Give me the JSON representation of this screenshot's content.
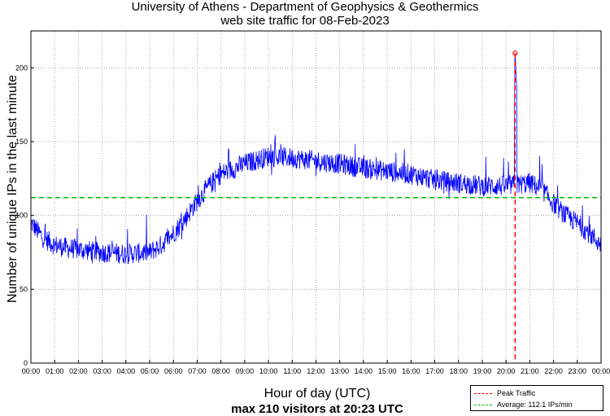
{
  "chart_data": {
    "type": "line",
    "title": "University of Athens - Department of Geophysics & Geothermics",
    "subtitle": "web site traffic for 08-Feb-2023",
    "xlabel": "Hour of day (UTC)",
    "ylabel": "Number of unique IPs in the last minute",
    "summary": "max 210 visitors at 20:23 UTC",
    "x_ticks": [
      "00:00",
      "01:00",
      "02:00",
      "03:00",
      "04:00",
      "05:00",
      "06:00",
      "07:00",
      "08:00",
      "09:00",
      "10:00",
      "11:00",
      "12:00",
      "13:00",
      "14:00",
      "15:00",
      "16:00",
      "17:00",
      "18:00",
      "19:00",
      "20:00",
      "21:00",
      "22:00",
      "23:00",
      "00:00"
    ],
    "y_ticks": [
      0,
      50,
      100,
      150,
      200
    ],
    "xlim_minutes": [
      0,
      1440
    ],
    "ylim": [
      0,
      225
    ],
    "grid": true,
    "series": [
      {
        "name": "Traffic",
        "color": "#0000ff",
        "hour_profile": [
          {
            "minute": 0,
            "value": 95
          },
          {
            "minute": 30,
            "value": 85
          },
          {
            "minute": 60,
            "value": 80
          },
          {
            "minute": 90,
            "value": 78
          },
          {
            "minute": 120,
            "value": 77
          },
          {
            "minute": 180,
            "value": 75
          },
          {
            "minute": 240,
            "value": 74
          },
          {
            "minute": 300,
            "value": 75
          },
          {
            "minute": 330,
            "value": 80
          },
          {
            "minute": 360,
            "value": 88
          },
          {
            "minute": 390,
            "value": 98
          },
          {
            "minute": 420,
            "value": 110
          },
          {
            "minute": 450,
            "value": 120
          },
          {
            "minute": 480,
            "value": 128
          },
          {
            "minute": 540,
            "value": 135
          },
          {
            "minute": 600,
            "value": 140
          },
          {
            "minute": 660,
            "value": 139
          },
          {
            "minute": 720,
            "value": 137
          },
          {
            "minute": 780,
            "value": 135
          },
          {
            "minute": 840,
            "value": 132
          },
          {
            "minute": 900,
            "value": 130
          },
          {
            "minute": 960,
            "value": 128
          },
          {
            "minute": 1020,
            "value": 124
          },
          {
            "minute": 1080,
            "value": 122
          },
          {
            "minute": 1140,
            "value": 120
          },
          {
            "minute": 1200,
            "value": 120
          },
          {
            "minute": 1260,
            "value": 122
          },
          {
            "minute": 1290,
            "value": 118
          },
          {
            "minute": 1320,
            "value": 108
          },
          {
            "minute": 1350,
            "value": 100
          },
          {
            "minute": 1380,
            "value": 95
          },
          {
            "minute": 1410,
            "value": 88
          },
          {
            "minute": 1440,
            "value": 80
          }
        ],
        "peak": {
          "minute": 1223,
          "value": 210
        }
      },
      {
        "name": "Peak Traffic",
        "color": "#ff0000",
        "style": "dashed",
        "x_minute": 1223
      },
      {
        "name": "Average: 112.1 IPs/min",
        "color": "#00bb00",
        "style": "dashed",
        "value": 112.1
      }
    ],
    "legend": [
      {
        "label": "Peak Traffic",
        "color": "#ff0000"
      },
      {
        "label": "Average: 112.1 IPs/min",
        "color": "#00bb00"
      }
    ],
    "legend_position": "bottom-right"
  }
}
